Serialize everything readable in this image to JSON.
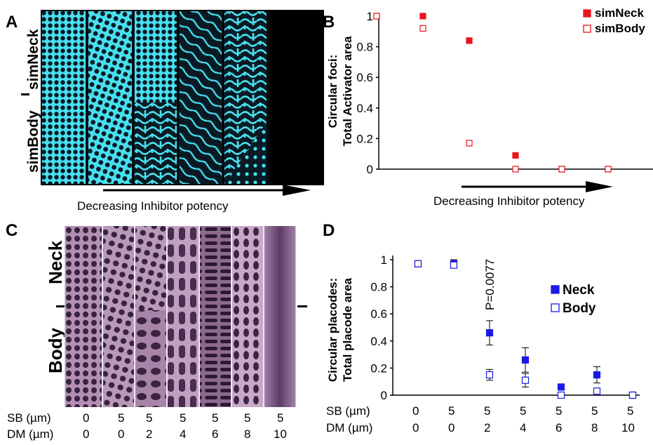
{
  "panels": {
    "a": "A",
    "b": "B",
    "c": "C",
    "d": "D"
  },
  "panel_a": {
    "row_labels": [
      "simNeck",
      "simBody"
    ],
    "arrow_label": "Decreasing Inhibitor potency"
  },
  "panel_c": {
    "row_labels": [
      "Neck",
      "Body"
    ],
    "sb_label": "SB (µm)",
    "dm_label": "DM (µm)",
    "sb_values": [
      "0",
      "5",
      "5",
      "5",
      "5",
      "5",
      "5"
    ],
    "dm_values": [
      "0",
      "0",
      "2",
      "4",
      "6",
      "8",
      "10"
    ]
  },
  "panel_d_table": {
    "sb_label": "SB (µm)",
    "dm_label": "DM (µm)",
    "sb_values": [
      "0",
      "5",
      "5",
      "5",
      "5",
      "5",
      "5"
    ],
    "dm_values": [
      "0",
      "0",
      "2",
      "4",
      "6",
      "8",
      "10"
    ]
  },
  "colors": {
    "red": "#e8141c",
    "blue": "#1a1ae6",
    "pattern_bg": "#0a1a24",
    "pattern_fg": "#48e0f0",
    "tissue_bg": "#b48fb4",
    "tissue_fg": "#3a2240"
  },
  "chart_data": [
    {
      "id": "B",
      "type": "scatter",
      "title": "",
      "xlabel": "Decreasing Inhibitor potency",
      "ylabel_line1": "Circular foci:",
      "ylabel_line2": "Total Activator area",
      "ylim": [
        0,
        1
      ],
      "yticks": [
        "0",
        "0.2",
        "0.4",
        "0.6",
        "0.8",
        "1"
      ],
      "ytick_values": [
        0,
        0.2,
        0.4,
        0.6,
        0.8,
        1
      ],
      "x": [
        1,
        2,
        3,
        4,
        5,
        6
      ],
      "legend_position": "top-right",
      "series": [
        {
          "name": "simNeck",
          "marker": "filled-square",
          "values": [
            1,
            1,
            0.84,
            0.09,
            0,
            0
          ]
        },
        {
          "name": "simBody",
          "marker": "open-square",
          "values": [
            1,
            0.92,
            0.17,
            0,
            0,
            0
          ]
        }
      ]
    },
    {
      "id": "D",
      "type": "scatter",
      "title": "",
      "ylabel_line1": "Circular placodes:",
      "ylabel_line2": "Total placode area",
      "ylim": [
        0,
        1
      ],
      "yticks": [
        "0",
        "0.2",
        "0.4",
        "0.6",
        "0.8",
        "1"
      ],
      "ytick_values": [
        0,
        0.2,
        0.4,
        0.6,
        0.8,
        1
      ],
      "x": [
        1,
        2,
        3,
        4,
        5,
        6,
        7
      ],
      "annotation": "P=0.0077",
      "legend_position": "top-right",
      "series": [
        {
          "name": "Neck",
          "marker": "filled-square",
          "values": [
            0.97,
            0.97,
            0.46,
            0.26,
            0.06,
            0.15,
            0
          ],
          "err": [
            0.02,
            0.03,
            0.09,
            0.09,
            0.02,
            0.06,
            0
          ]
        },
        {
          "name": "Body",
          "marker": "open-square",
          "values": [
            0.97,
            0.96,
            0.15,
            0.11,
            0,
            0.03,
            0
          ],
          "err": [
            0.02,
            0.02,
            0.04,
            0.05,
            0,
            0,
            0
          ]
        }
      ]
    }
  ]
}
